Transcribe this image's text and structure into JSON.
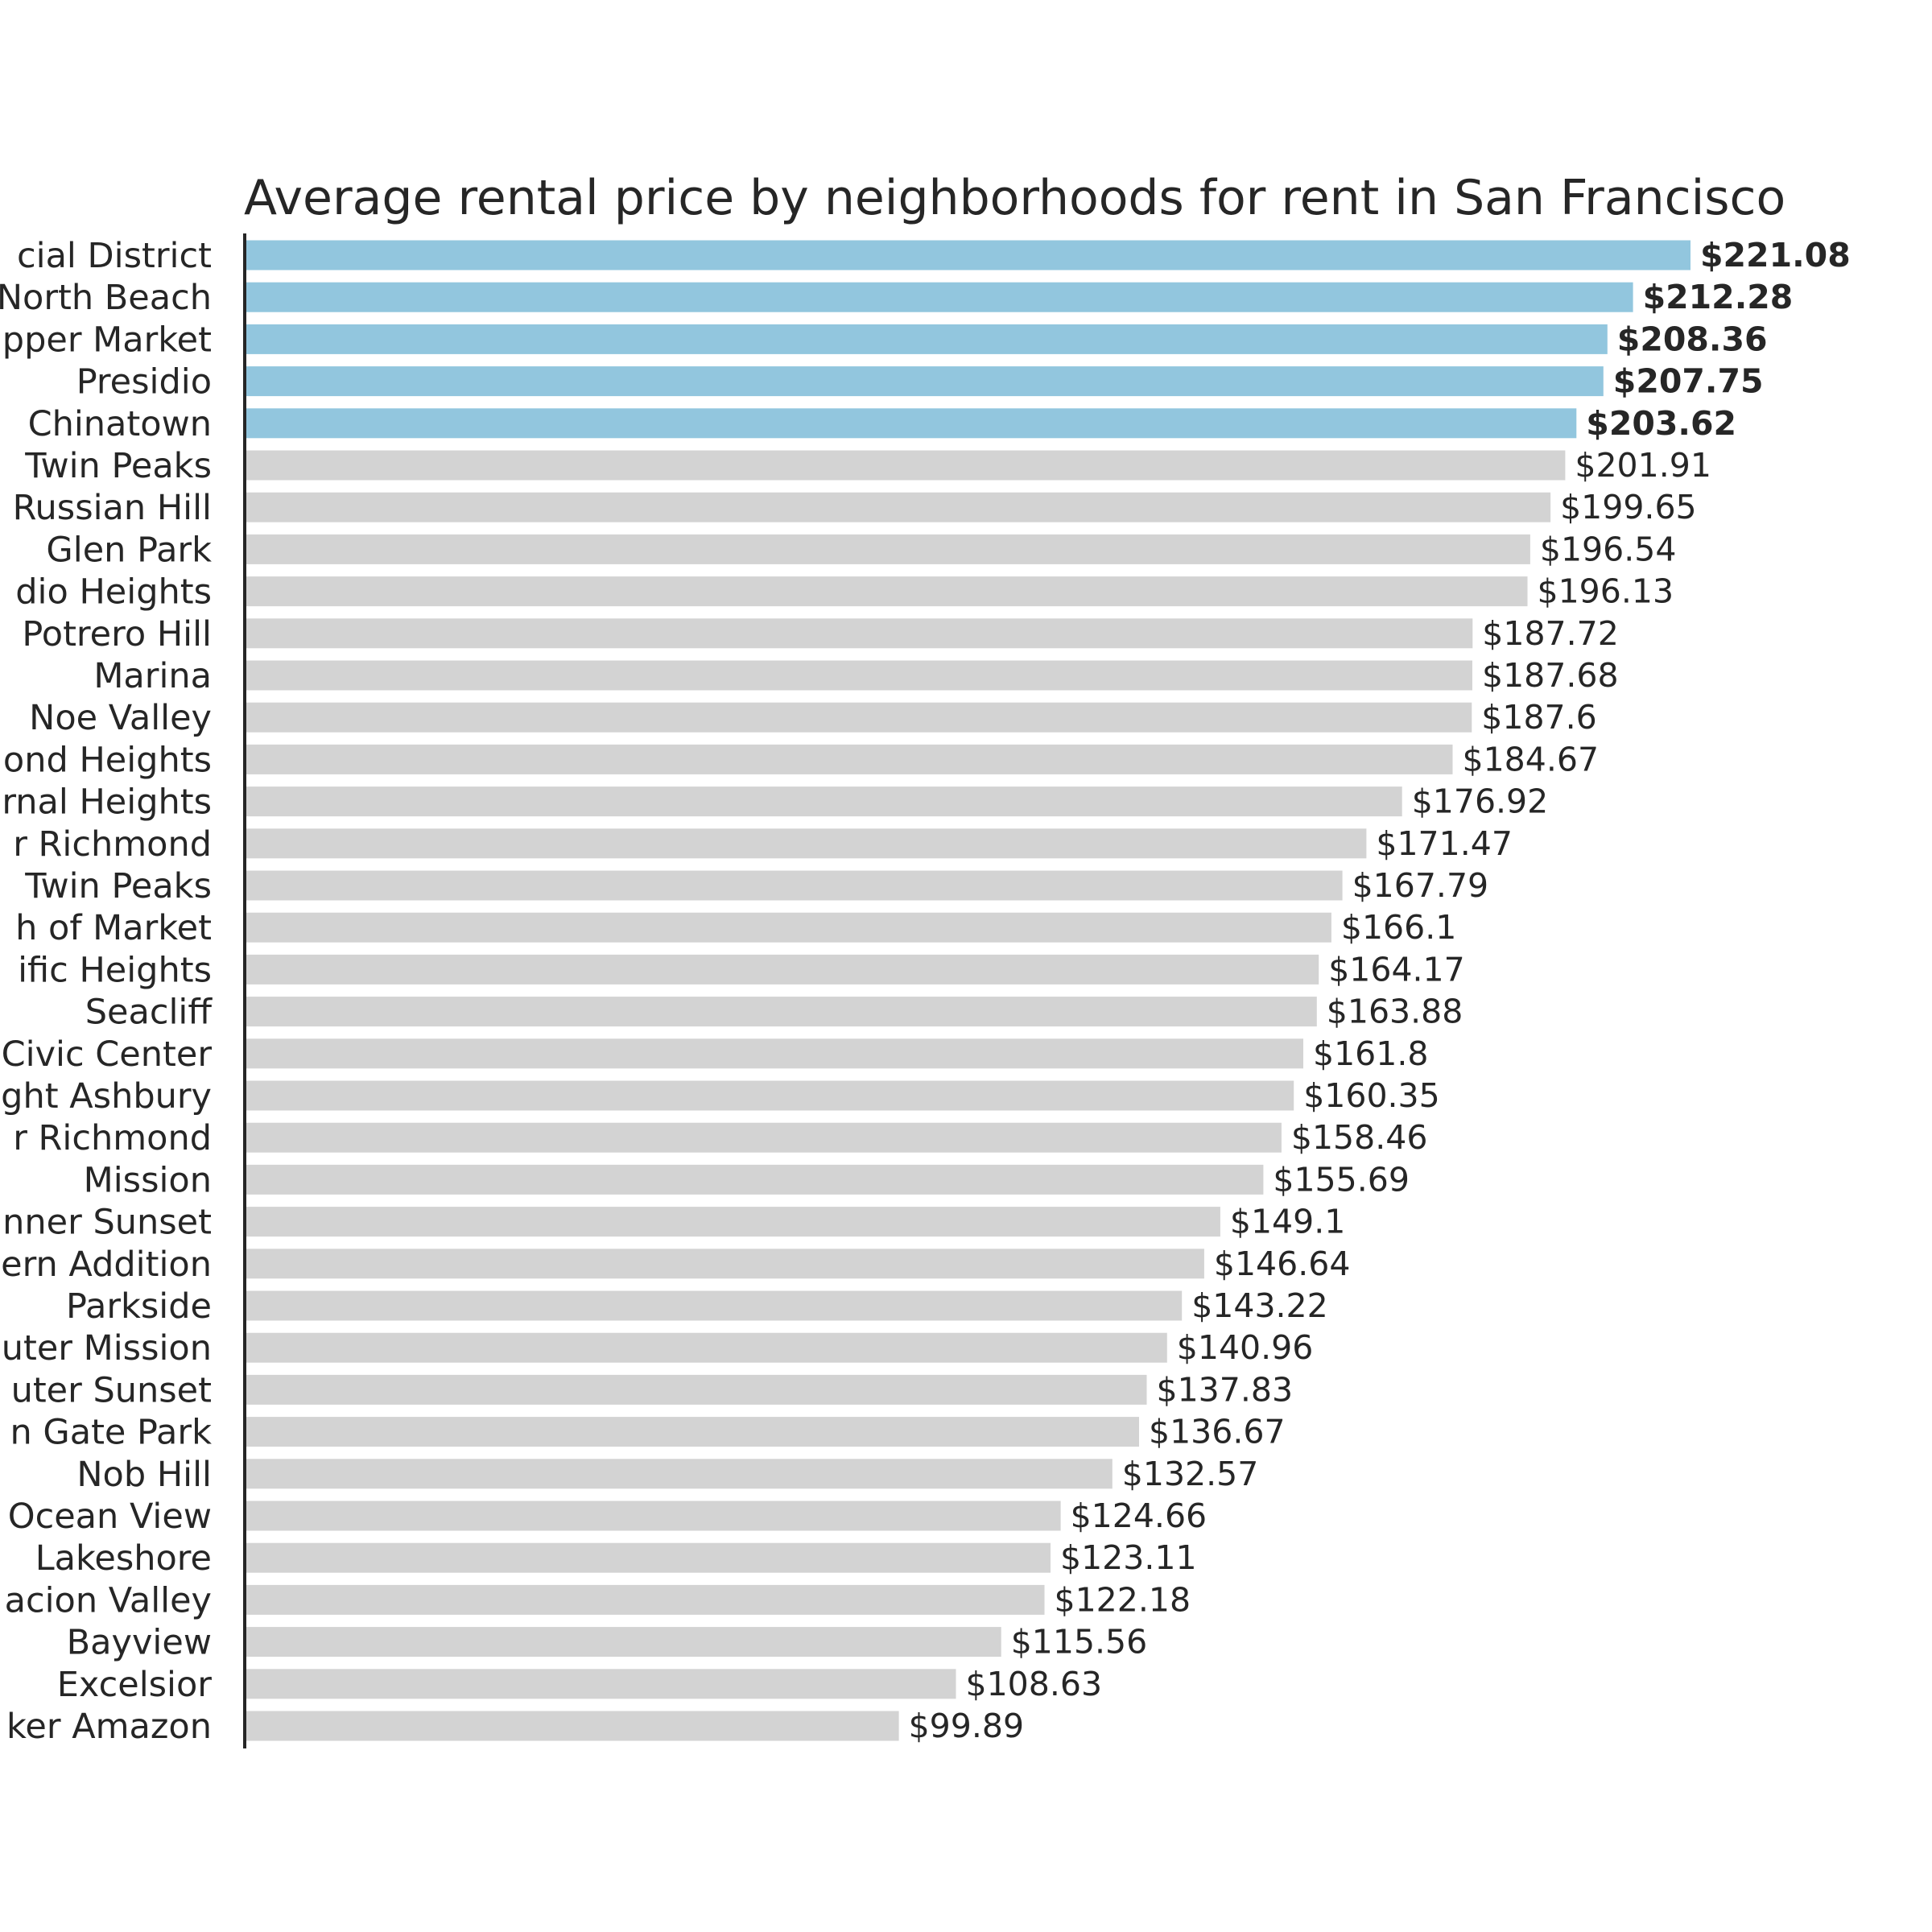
{
  "chart_data": {
    "type": "bar",
    "orientation": "horizontal",
    "title": "Average rental price by neighborhoods for rent in San Francisco",
    "xlabel": "",
    "ylabel": "",
    "xlim": [
      0,
      221.08
    ],
    "grid": false,
    "categories": [
      "cial District",
      "North Beach",
      "pper Market",
      "Presidio",
      "Chinatown",
      "Twin Peaks",
      "Russian Hill",
      "Glen Park",
      "dio Heights",
      "Potrero Hill",
      "Marina",
      "Noe Valley",
      "ond Heights",
      "rnal Heights",
      "r Richmond",
      "Twin Peaks",
      "h of Market",
      "ific Heights",
      "Seacliff",
      "Civic Center",
      "ght Ashbury",
      "r Richmond",
      "Mission",
      "nner Sunset",
      "ern Addition",
      "Parkside",
      "uter Mission",
      "uter Sunset",
      "n Gate Park",
      "Nob Hill",
      "Ocean View",
      "Lakeshore",
      "acion Valley",
      "Bayview",
      "Excelsior",
      "ker Amazon"
    ],
    "values": [
      221.08,
      212.28,
      208.36,
      207.75,
      203.62,
      201.91,
      199.65,
      196.54,
      196.13,
      187.72,
      187.68,
      187.6,
      184.67,
      176.92,
      171.47,
      167.79,
      166.1,
      164.17,
      163.88,
      161.8,
      160.35,
      158.46,
      155.69,
      149.1,
      146.64,
      143.22,
      140.96,
      137.83,
      136.67,
      132.57,
      124.66,
      123.11,
      122.18,
      115.56,
      108.63,
      99.89
    ],
    "value_labels": [
      "$221.08",
      "$212.28",
      "$208.36",
      "$207.75",
      "$203.62",
      "$201.91",
      "$199.65",
      "$196.54",
      "$196.13",
      "$187.72",
      "$187.68",
      "$187.6",
      "$184.67",
      "$176.92",
      "$171.47",
      "$167.79",
      "$166.1",
      "$164.17",
      "$163.88",
      "$161.8",
      "$160.35",
      "$158.46",
      "$155.69",
      "$149.1",
      "$146.64",
      "$143.22",
      "$140.96",
      "$137.83",
      "$136.67",
      "$132.57",
      "$124.66",
      "$123.11",
      "$122.18",
      "$115.56",
      "$108.63",
      "$99.89"
    ],
    "highlight_top_n": 5,
    "colors": {
      "highlight": "#92c6de",
      "default": "#d3d3d3",
      "text": "#262626",
      "axis": "#262626"
    }
  }
}
